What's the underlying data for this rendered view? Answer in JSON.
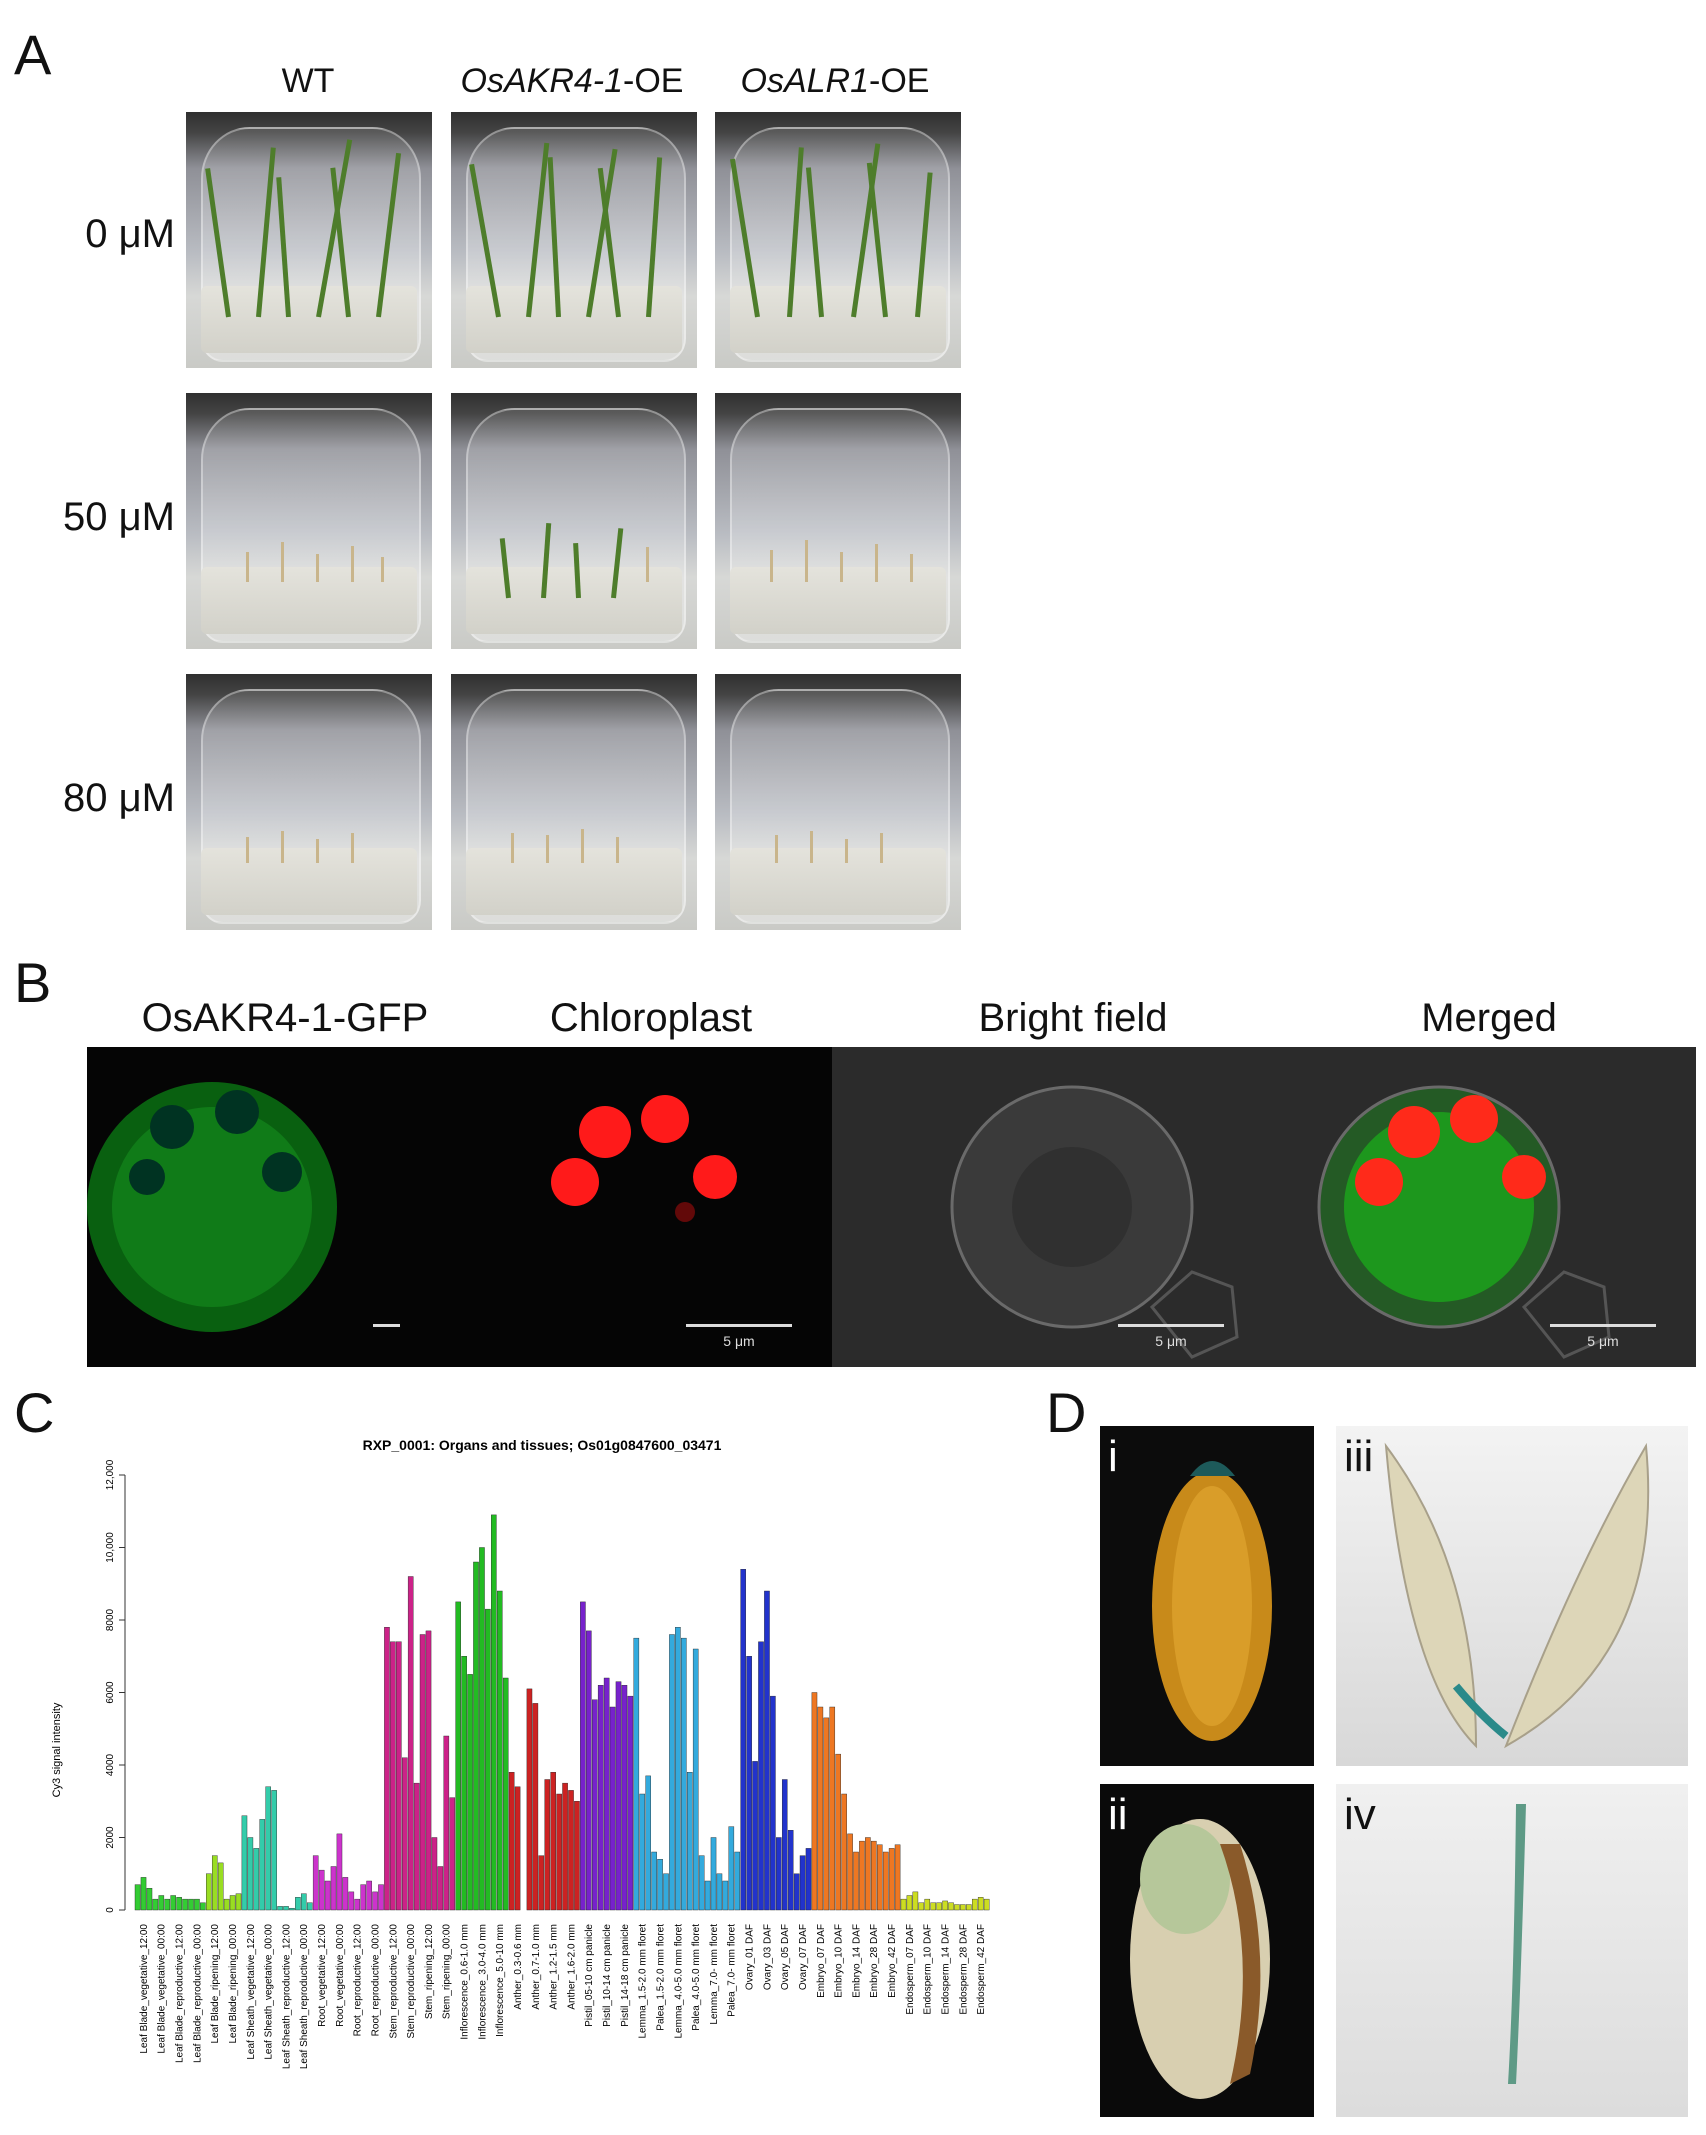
{
  "panelA": {
    "letter": "A",
    "columns": [
      {
        "label_plain": "WT",
        "label_italic": "",
        "label_suffix": ""
      },
      {
        "label_plain": "",
        "label_italic": "OsAKR4-1",
        "label_suffix": "-OE"
      },
      {
        "label_plain": "",
        "label_italic": "OsALR1",
        "label_suffix": "-OE"
      }
    ],
    "rows": [
      "0 μM",
      "50 μM",
      "80 μM"
    ]
  },
  "panelB": {
    "letter": "B",
    "titles": [
      "OsAKR4-1-GFP",
      "Chloroplast",
      "Bright field",
      "Merged"
    ],
    "scalebar": "5 μm"
  },
  "panelC": {
    "letter": "C"
  },
  "panelD": {
    "letter": "D",
    "subpanels": [
      "i",
      "ii",
      "iii",
      "iv"
    ]
  },
  "chart_data": {
    "type": "bar",
    "title": "RXP_0001: Organs and tissues; Os01g0847600_03471",
    "ylabel": "Cy3 signal intensity",
    "xlabel": "",
    "ylim": [
      0,
      12000
    ],
    "yticks": [
      "0",
      "2000",
      "4000",
      "6000",
      "8000",
      "10,000",
      "12,000"
    ],
    "groups": [
      {
        "label": "Leaf Blade_vegetative_12:00",
        "color": "#33cc33",
        "values": [
          700,
          900,
          600
        ]
      },
      {
        "label": "Leaf Blade_vegetative_00:00",
        "color": "#33cc33",
        "values": [
          300,
          400,
          300
        ]
      },
      {
        "label": "Leaf Blade_reproductive_12:00",
        "color": "#33cc33",
        "values": [
          400,
          350,
          300
        ]
      },
      {
        "label": "Leaf Blade_reproductive_00:00",
        "color": "#33cc33",
        "values": [
          300,
          300,
          200
        ]
      },
      {
        "label": "Leaf Blade_ripening_12:00",
        "color": "#99dd22",
        "values": [
          1000,
          1500,
          1300
        ]
      },
      {
        "label": "Leaf Blade_ripening_00:00",
        "color": "#99dd22",
        "values": [
          300,
          400,
          450
        ]
      },
      {
        "label": "Leaf Sheath_vegetative_12:00",
        "color": "#33ccaa",
        "values": [
          2600,
          2000,
          1700
        ]
      },
      {
        "label": "Leaf Sheath_vegetative_00:00",
        "color": "#33ccaa",
        "values": [
          2500,
          3400,
          3300
        ]
      },
      {
        "label": "Leaf Sheath_reproductive_12:00",
        "color": "#33ccaa",
        "values": [
          100,
          100,
          50
        ]
      },
      {
        "label": "Leaf Sheath_reproductive_00:00",
        "color": "#33ccaa",
        "values": [
          350,
          450,
          200
        ]
      },
      {
        "label": "Root_vegetative_12:00",
        "color": "#cc33cc",
        "values": [
          1500,
          1100,
          800
        ]
      },
      {
        "label": "Root_vegetative_00:00",
        "color": "#cc33cc",
        "values": [
          1200,
          2100,
          900
        ]
      },
      {
        "label": "Root_reproductive_12:00",
        "color": "#cc33cc",
        "values": [
          500,
          300,
          700
        ]
      },
      {
        "label": "Root_reproductive_00:00",
        "color": "#cc33cc",
        "values": [
          800,
          500,
          700
        ]
      },
      {
        "label": "Stem_reproductive_12:00",
        "color": "#cc2288",
        "values": [
          7800,
          7400,
          7400
        ]
      },
      {
        "label": "Stem_reproductive_00:00",
        "color": "#cc2288",
        "values": [
          4200,
          9200,
          3500
        ]
      },
      {
        "label": "Stem_ripening_12:00",
        "color": "#cc2288",
        "values": [
          7600,
          7700,
          2000
        ]
      },
      {
        "label": "Stem_ripening_00:00",
        "color": "#cc2288",
        "values": [
          1200,
          4800,
          3100
        ]
      },
      {
        "label": "Inflorescence_0.6-1.0 mm",
        "color": "#22bb22",
        "values": [
          8500,
          7000,
          6500
        ]
      },
      {
        "label": "Inflorescence_3.0-4.0 mm",
        "color": "#22bb22",
        "values": [
          9600,
          10000,
          8300
        ]
      },
      {
        "label": "Inflorescence_5.0-10 mm",
        "color": "#22bb22",
        "values": [
          10900,
          8800,
          6400
        ]
      },
      {
        "label": "Anther_0.3-0.6 mm",
        "color": "#cc2222",
        "values": [
          3800,
          3400,
          0
        ]
      },
      {
        "label": "Anther_0.7-1.0 mm",
        "color": "#cc2222",
        "values": [
          6100,
          5700,
          1500
        ]
      },
      {
        "label": "Anther_1.2-1.5 mm",
        "color": "#cc2222",
        "values": [
          3600,
          3800,
          3200
        ]
      },
      {
        "label": "Anther_1.6-2.0 mm",
        "color": "#cc2222",
        "values": [
          3500,
          3300,
          3000
        ]
      },
      {
        "label": "Pistil_05-10 cm panicle",
        "color": "#7722cc",
        "values": [
          8500,
          7700,
          5800
        ]
      },
      {
        "label": "Pistil_10-14 cm panicle",
        "color": "#7722cc",
        "values": [
          6200,
          6400,
          5600
        ]
      },
      {
        "label": "Pistil_14-18 cm panicle",
        "color": "#7722cc",
        "values": [
          6300,
          6200,
          5900
        ]
      },
      {
        "label": "Lemma_1.5-2.0 mm floret",
        "color": "#33aadd",
        "values": [
          7500,
          3200,
          3700
        ]
      },
      {
        "label": "Palea_1.5-2.0 mm floret",
        "color": "#33aadd",
        "values": [
          1600,
          1400,
          1000
        ]
      },
      {
        "label": "Lemma_4.0-5.0 mm floret",
        "color": "#33aadd",
        "values": [
          7600,
          7800,
          7500
        ]
      },
      {
        "label": "Palea_4.0-5.0 mm floret",
        "color": "#33aadd",
        "values": [
          3800,
          7200,
          1500
        ]
      },
      {
        "label": "Lemma_7.0- mm floret",
        "color": "#33aadd",
        "values": [
          800,
          2000,
          1000
        ]
      },
      {
        "label": "Palea_7.0- mm floret",
        "color": "#33aadd",
        "values": [
          800,
          2300,
          1600
        ]
      },
      {
        "label": "Ovary_01 DAF",
        "color": "#2233cc",
        "values": [
          9400,
          7000,
          4100
        ]
      },
      {
        "label": "Ovary_03 DAF",
        "color": "#2233cc",
        "values": [
          7400,
          8800,
          5900
        ]
      },
      {
        "label": "Ovary_05 DAF",
        "color": "#2233cc",
        "values": [
          2000,
          3600,
          2200
        ]
      },
      {
        "label": "Ovary_07 DAF",
        "color": "#2233cc",
        "values": [
          1000,
          1500,
          1700
        ]
      },
      {
        "label": "Embryo_07 DAF",
        "color": "#ee7722",
        "values": [
          6000,
          5600,
          5300
        ]
      },
      {
        "label": "Embryo_10 DAF",
        "color": "#ee7722",
        "values": [
          5600,
          4300,
          3200
        ]
      },
      {
        "label": "Embryo_14 DAF",
        "color": "#ee7722",
        "values": [
          2100,
          1600,
          1900
        ]
      },
      {
        "label": "Embryo_28 DAF",
        "color": "#ee7722",
        "values": [
          2000,
          1900,
          1800
        ]
      },
      {
        "label": "Embryo_42 DAF",
        "color": "#ee7722",
        "values": [
          1600,
          1700,
          1800
        ]
      },
      {
        "label": "Endosperm_07 DAF",
        "color": "#ccdd22",
        "values": [
          300,
          400,
          500
        ]
      },
      {
        "label": "Endosperm_10 DAF",
        "color": "#ccdd22",
        "values": [
          200,
          300,
          200
        ]
      },
      {
        "label": "Endosperm_14 DAF",
        "color": "#ccdd22",
        "values": [
          200,
          250,
          200
        ]
      },
      {
        "label": "Endosperm_28 DAF",
        "color": "#ccdd22",
        "values": [
          150,
          150,
          150
        ]
      },
      {
        "label": "Endosperm_42 DAF",
        "color": "#ccdd22",
        "values": [
          300,
          350,
          300
        ]
      }
    ]
  }
}
